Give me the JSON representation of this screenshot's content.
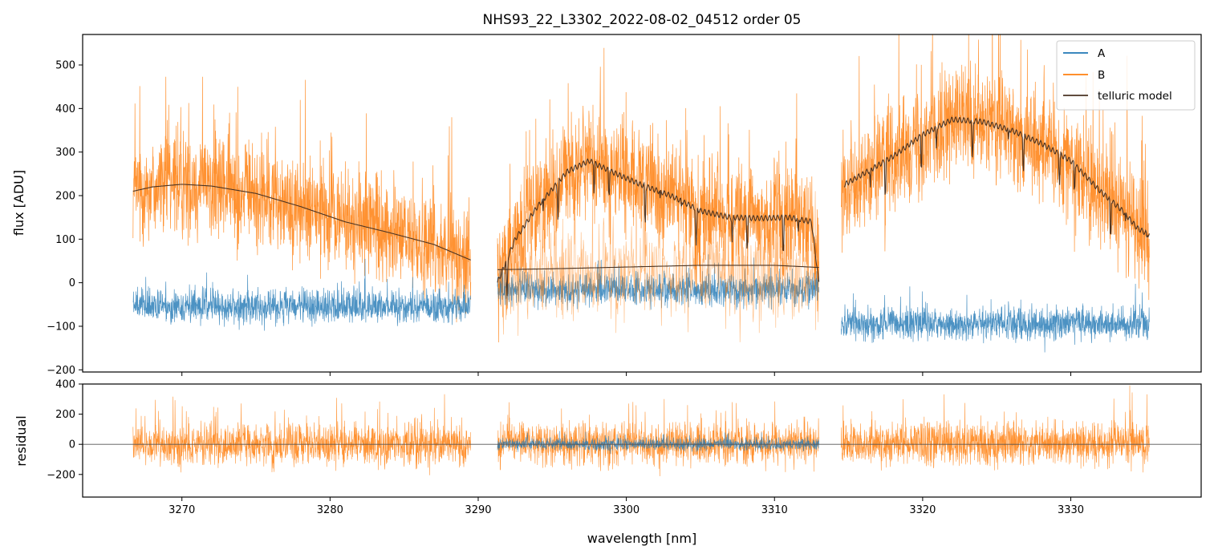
{
  "title": "NHS93_22_L3302_2022-08-02_04512  order 05",
  "colors": {
    "A": "#1f77b4",
    "B": "#ff7f0e",
    "model": "#4a3322",
    "frame": "#000000"
  },
  "chart_data": [
    {
      "type": "line",
      "panel": "top",
      "title": "NHS93_22_L3302_2022-08-02_04512  order 05",
      "xlabel": "",
      "ylabel": "flux [ADU]",
      "xlim": [
        3263.3,
        3338.8
      ],
      "ylim": [
        -205,
        570
      ],
      "yticks": [
        -200,
        -100,
        0,
        100,
        200,
        300,
        400,
        500
      ],
      "xticks": [
        3270,
        3280,
        3290,
        3300,
        3310,
        3320,
        3330
      ],
      "xtick_labels_visible": false,
      "legend": {
        "placement": "top-right",
        "entries": [
          "A",
          "B",
          "telluric model"
        ]
      },
      "segments": [
        {
          "x_range": [
            3266.7,
            3289.5
          ]
        },
        {
          "x_range": [
            3291.3,
            3313.0
          ]
        },
        {
          "x_range": [
            3314.5,
            3335.3
          ]
        }
      ],
      "series": [
        {
          "name": "A",
          "color": "#1f77b4",
          "level_by_segment": [
            -55,
            -15,
            -95
          ],
          "noise_amplitude": 40
        },
        {
          "name": "B",
          "color": "#ff7f0e",
          "follows": "telluric model",
          "noise_amplitude": 130
        },
        {
          "name": "telluric model",
          "color": "#4a3322",
          "curves": [
            {
              "x": [
                3266.7,
                3268.0,
                3270.0,
                3272.0,
                3275.0,
                3278.0,
                3281.0,
                3284.0,
                3287.0,
                3289.5
              ],
              "y": [
                210,
                220,
                226,
                222,
                205,
                175,
                140,
                115,
                88,
                52
              ]
            },
            {
              "x": [
                3291.3,
                3292.5,
                3294.0,
                3296.0,
                3297.5,
                3299.0,
                3301.0,
                3303.0,
                3305.0,
                3307.0,
                3309.0,
                3311.0,
                3312.5,
                3313.0
              ],
              "y": [
                0,
                100,
                175,
                255,
                280,
                255,
                225,
                200,
                165,
                150,
                148,
                150,
                140,
                0
              ]
            },
            {
              "x": [
                3291.3,
                3295.0,
                3300.0,
                3305.0,
                3310.0,
                3313.0
              ],
              "y": [
                30,
                32,
                36,
                40,
                40,
                35
              ]
            },
            {
              "x": [
                3314.7,
                3316.0,
                3318.0,
                3320.0,
                3322.0,
                3324.0,
                3326.0,
                3328.0,
                3330.0,
                3332.0,
                3333.5,
                3334.5,
                3335.3
              ],
              "y": [
                225,
                250,
                290,
                340,
                375,
                370,
                350,
                320,
                280,
                210,
                165,
                125,
                110
              ]
            }
          ]
        }
      ]
    },
    {
      "type": "line",
      "panel": "bottom",
      "xlabel": "wavelength [nm]",
      "ylabel": "residual",
      "xlim": [
        3263.3,
        3338.8
      ],
      "ylim": [
        -350,
        400
      ],
      "yticks": [
        -200,
        0,
        200,
        400
      ],
      "xticks": [
        3270,
        3280,
        3290,
        3300,
        3310,
        3320,
        3330
      ],
      "zero_line": true,
      "series": [
        {
          "name": "B",
          "color": "#ff7f0e",
          "level": 0,
          "noise_amplitude": 150
        },
        {
          "name": "A",
          "color": "#1f77b4",
          "x_range": [
            3291.3,
            3313.0
          ],
          "level": 0,
          "noise_amplitude": 40
        }
      ]
    }
  ]
}
